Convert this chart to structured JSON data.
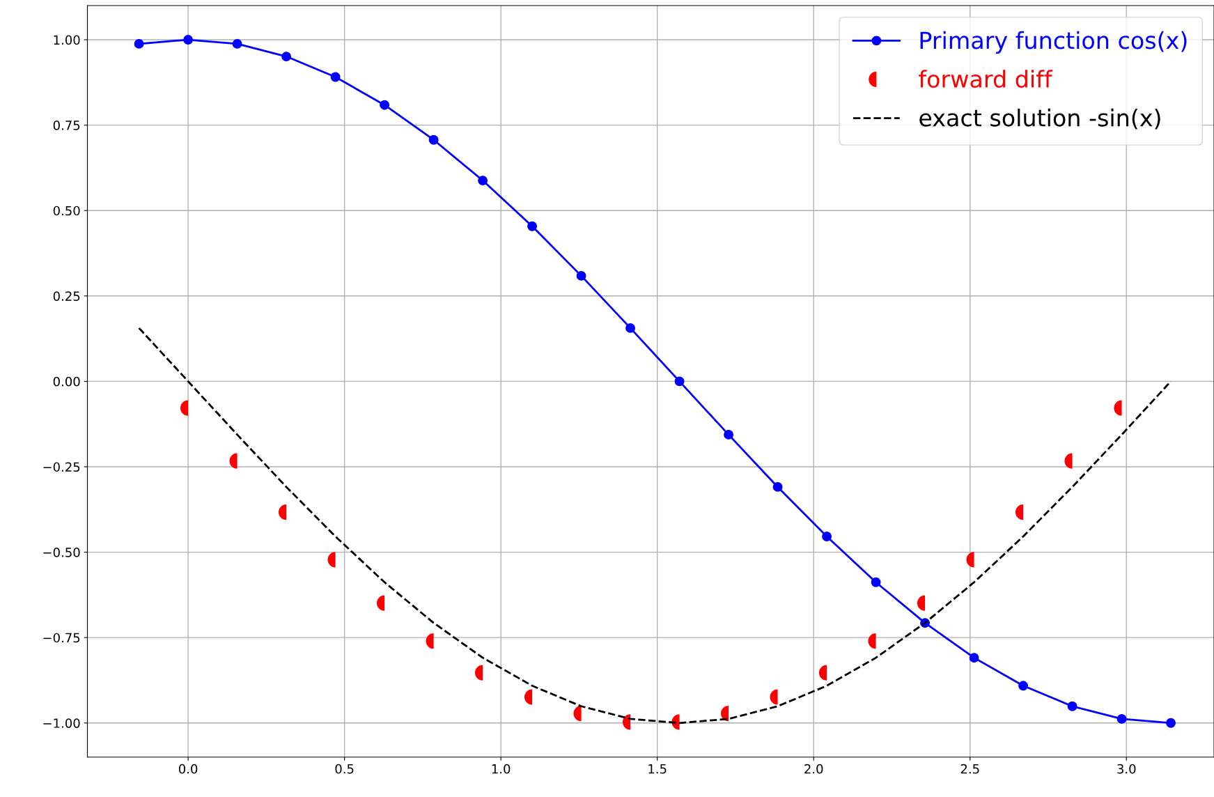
{
  "chart_data": {
    "type": "line",
    "series": [
      {
        "name": "Primary function cos(x)",
        "color": "#0000ff",
        "marker": "circle",
        "line_style": "solid",
        "x": [
          -0.157,
          0,
          0.157,
          0.314,
          0.471,
          0.628,
          0.785,
          0.942,
          1.1,
          1.257,
          1.414,
          1.571,
          1.728,
          1.885,
          2.042,
          2.199,
          2.356,
          2.513,
          2.67,
          2.827,
          2.985,
          3.142
        ],
        "values": [
          0.988,
          1.0,
          0.988,
          0.951,
          0.891,
          0.809,
          0.707,
          0.588,
          0.454,
          0.309,
          0.156,
          0.0,
          -0.156,
          -0.309,
          -0.454,
          -0.588,
          -0.707,
          -0.809,
          -0.891,
          -0.951,
          -0.988,
          -1.0
        ]
      },
      {
        "name": "forward diff",
        "type": "scatter",
        "color": "#ff0000",
        "marker": "circle",
        "x": [
          0,
          0.157,
          0.314,
          0.471,
          0.628,
          0.785,
          0.942,
          1.1,
          1.257,
          1.414,
          1.571,
          1.728,
          1.885,
          2.042,
          2.199,
          2.356,
          2.513,
          2.67,
          2.827,
          2.985
        ],
        "values": [
          -0.078,
          -0.233,
          -0.383,
          -0.522,
          -0.649,
          -0.76,
          -0.853,
          -0.924,
          -0.972,
          -0.997,
          -0.997,
          -0.972,
          -0.924,
          -0.853,
          -0.76,
          -0.649,
          -0.522,
          -0.383,
          -0.233,
          -0.078
        ]
      },
      {
        "name": "exact solution -sin(x)",
        "color": "#000000",
        "marker": "none",
        "line_style": "dashed",
        "x": [
          -0.157,
          0,
          0.157,
          0.314,
          0.471,
          0.628,
          0.785,
          0.942,
          1.1,
          1.257,
          1.414,
          1.571,
          1.728,
          1.885,
          2.042,
          2.199,
          2.356,
          2.513,
          2.67,
          2.827,
          2.985,
          3.142
        ],
        "values": [
          0.156,
          0.0,
          -0.156,
          -0.309,
          -0.454,
          -0.588,
          -0.707,
          -0.809,
          -0.891,
          -0.951,
          -0.988,
          -1.0,
          -0.988,
          -0.951,
          -0.891,
          -0.809,
          -0.707,
          -0.588,
          -0.454,
          -0.309,
          -0.156,
          0.0
        ]
      }
    ],
    "xlim": [
      -0.322,
      3.28
    ],
    "ylim": [
      -1.1,
      1.1
    ],
    "xticks": [
      {
        "value": 0,
        "label": "0.0"
      },
      {
        "value": 0.5,
        "label": "0.5"
      },
      {
        "value": 1,
        "label": "1.0"
      },
      {
        "value": 1.5,
        "label": "1.5"
      },
      {
        "value": 2,
        "label": "2.0"
      },
      {
        "value": 2.5,
        "label": "2.5"
      },
      {
        "value": 3,
        "label": "3.0"
      }
    ],
    "yticks": [
      {
        "value": -1,
        "label": "−1.00"
      },
      {
        "value": -0.75,
        "label": "−0.75"
      },
      {
        "value": -0.5,
        "label": "−0.50"
      },
      {
        "value": -0.25,
        "label": "−0.25"
      },
      {
        "value": 0,
        "label": "0.00"
      },
      {
        "value": 0.25,
        "label": "0.25"
      },
      {
        "value": 0.5,
        "label": "0.50"
      },
      {
        "value": 0.75,
        "label": "0.75"
      },
      {
        "value": 1,
        "label": "1.00"
      }
    ],
    "grid": true,
    "legend": "top right"
  }
}
